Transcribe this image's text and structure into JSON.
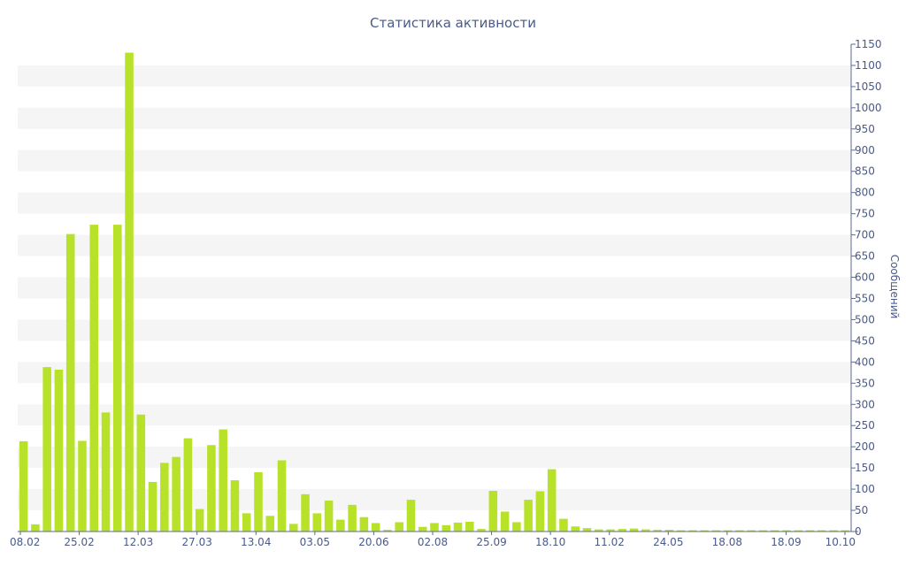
{
  "chart_data": {
    "type": "bar",
    "title": "Статистика активности",
    "ylabel": "Сообщений",
    "xlabel": "",
    "ylim": [
      0,
      1150
    ],
    "y_ticks": [
      0,
      50,
      100,
      150,
      200,
      250,
      300,
      350,
      400,
      450,
      500,
      550,
      600,
      650,
      700,
      750,
      800,
      850,
      900,
      950,
      1000,
      1050,
      1100,
      1150
    ],
    "y_axis_position": "right",
    "grid": "alternating horizontal bands",
    "x_tick_labels": [
      "08.02",
      "25.02",
      "12.03",
      "27.03",
      "13.04",
      "03.05",
      "20.06",
      "02.08",
      "25.09",
      "18.10",
      "11.02",
      "24.05",
      "18.08",
      "18.09",
      "10.10"
    ],
    "values": [
      213,
      17,
      388,
      382,
      702,
      214,
      724,
      281,
      724,
      1130,
      276,
      117,
      162,
      176,
      220,
      53,
      204,
      241,
      121,
      43,
      140,
      37,
      168,
      18,
      88,
      43,
      73,
      28,
      63,
      34,
      20,
      4,
      22,
      75,
      11,
      20,
      15,
      21,
      23,
      6,
      96,
      47,
      22,
      75,
      95,
      147,
      30,
      12,
      8,
      5,
      5,
      6,
      7,
      5,
      4,
      4,
      3,
      3,
      3,
      3,
      3,
      3,
      3,
      3,
      3,
      3,
      3,
      3,
      3,
      3,
      3
    ],
    "color": "#b8e22a",
    "band_color": "#f5f5f5",
    "text_color": "#4a5a8a",
    "axis_color": "#5a6a9a"
  }
}
